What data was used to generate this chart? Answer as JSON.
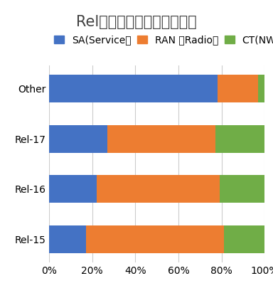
{
  "title": "Rel毎の寄書件数比率の推移",
  "categories": [
    "Rel-15",
    "Rel-16",
    "Rel-17",
    "Other"
  ],
  "series": {
    "SA(Service）": [
      17,
      22,
      27,
      78
    ],
    "RAN （Radio）": [
      64,
      57,
      50,
      19
    ],
    "CT(NW)": [
      19,
      21,
      23,
      3
    ]
  },
  "legend_labels": [
    "SA(Service）",
    "RAN （Radio）",
    "CT(NW)"
  ],
  "legend_display": [
    "SA(Service）",
    "RAN （Radio）",
    "CT(NW)"
  ],
  "colors": {
    "SA(Service）": "#4472C4",
    "RAN （Radio）": "#ED7D31",
    "CT(NW)": "#70AD47"
  },
  "xlim": [
    0,
    100
  ],
  "xticks": [
    0,
    20,
    40,
    60,
    80,
    100
  ],
  "xticklabels": [
    "0%",
    "20%",
    "40%",
    "60%",
    "80%",
    "100%"
  ],
  "background_color": "#ffffff",
  "title_fontsize": 15,
  "tick_fontsize": 11,
  "legend_fontsize": 10,
  "bar_height": 0.55
}
